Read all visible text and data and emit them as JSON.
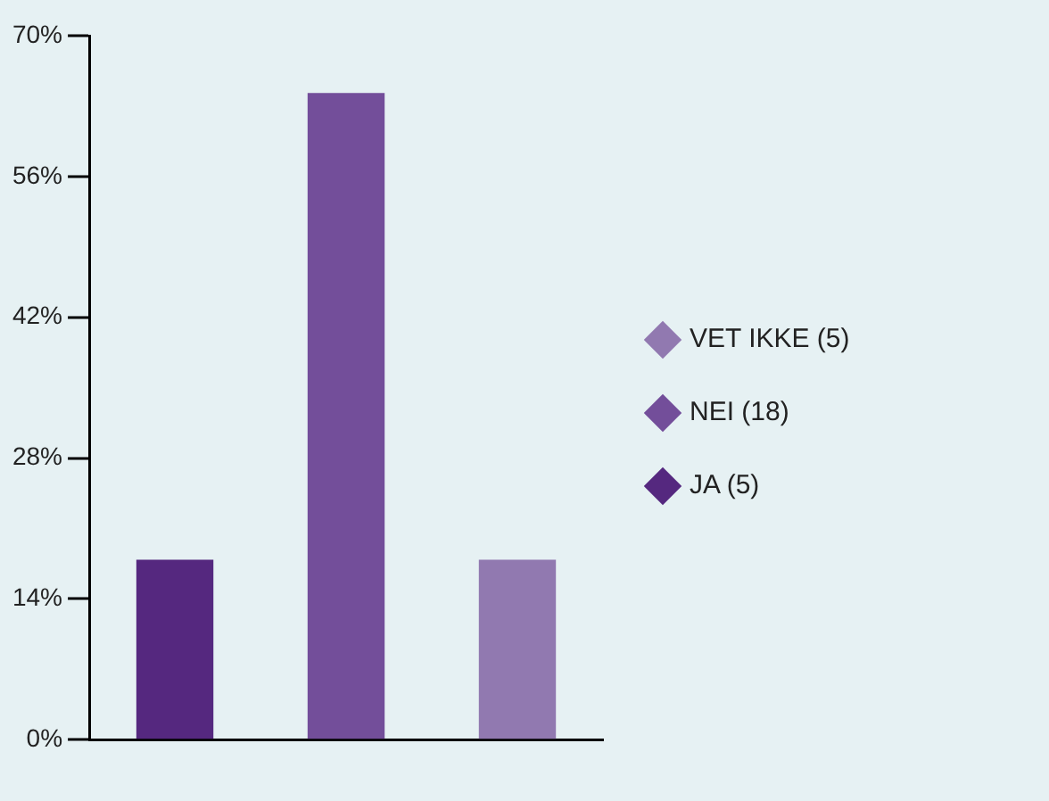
{
  "chart_data": {
    "type": "bar",
    "categories": [
      null,
      null,
      null
    ],
    "series": [
      {
        "name": "JA (5)",
        "color": "#55287f",
        "values": [
          17.9,
          null,
          null
        ]
      },
      {
        "name": "NEI (18)",
        "color": "#734e9a",
        "values": [
          null,
          64.3,
          null
        ]
      },
      {
        "name": "VET IKKE (5)",
        "color": "#9179b0",
        "values": [
          null,
          null,
          17.9
        ]
      }
    ],
    "ylim": [
      0,
      70
    ],
    "yticks": [
      {
        "value": 0,
        "label": "0%"
      },
      {
        "value": 14,
        "label": "14%"
      },
      {
        "value": 28,
        "label": "28%"
      },
      {
        "value": 42,
        "label": "42%"
      },
      {
        "value": 56,
        "label": "56%"
      },
      {
        "value": 70,
        "label": "70%"
      }
    ],
    "grid": false,
    "legend": "right"
  }
}
